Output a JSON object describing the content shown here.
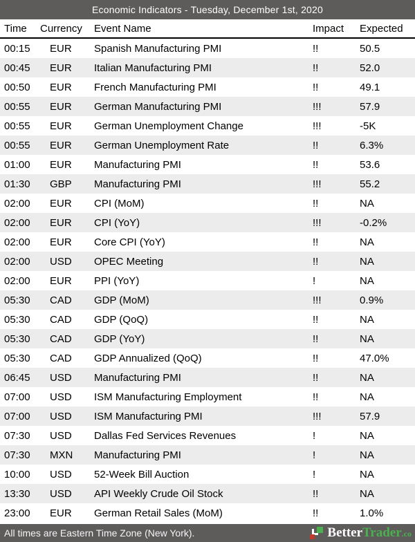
{
  "title_bar": {
    "title": "Economic Indicators - Tuesday, December 1st, 2020"
  },
  "table": {
    "columns": {
      "time": "Time",
      "currency": "Currency",
      "event": "Event Name",
      "impact": "Impact",
      "expected": "Expected"
    },
    "rows": [
      {
        "time": "00:15",
        "currency": "EUR",
        "event": "Spanish Manufacturing PMI",
        "impact": "!!",
        "expected": "50.5"
      },
      {
        "time": "00:45",
        "currency": "EUR",
        "event": "Italian Manufacturing PMI",
        "impact": "!!",
        "expected": "52.0"
      },
      {
        "time": "00:50",
        "currency": "EUR",
        "event": "French Manufacturing PMI",
        "impact": "!!",
        "expected": "49.1"
      },
      {
        "time": "00:55",
        "currency": "EUR",
        "event": "German Manufacturing PMI",
        "impact": "!!!",
        "expected": "57.9"
      },
      {
        "time": "00:55",
        "currency": "EUR",
        "event": "German Unemployment Change",
        "impact": "!!!",
        "expected": "-5K"
      },
      {
        "time": "00:55",
        "currency": "EUR",
        "event": "German Unemployment Rate",
        "impact": "!!",
        "expected": "6.3%"
      },
      {
        "time": "01:00",
        "currency": "EUR",
        "event": "Manufacturing PMI",
        "impact": "!!",
        "expected": "53.6"
      },
      {
        "time": "01:30",
        "currency": "GBP",
        "event": "Manufacturing PMI",
        "impact": "!!!",
        "expected": "55.2"
      },
      {
        "time": "02:00",
        "currency": "EUR",
        "event": "CPI (MoM)",
        "impact": "!!",
        "expected": "NA"
      },
      {
        "time": "02:00",
        "currency": "EUR",
        "event": "CPI (YoY)",
        "impact": "!!!",
        "expected": "-0.2%"
      },
      {
        "time": "02:00",
        "currency": "EUR",
        "event": "Core CPI (YoY)",
        "impact": "!!",
        "expected": "NA"
      },
      {
        "time": "02:00",
        "currency": "USD",
        "event": "OPEC Meeting",
        "impact": "!!",
        "expected": "NA"
      },
      {
        "time": "02:00",
        "currency": "EUR",
        "event": "PPI (YoY)",
        "impact": "!",
        "expected": "NA"
      },
      {
        "time": "05:30",
        "currency": "CAD",
        "event": "GDP (MoM)",
        "impact": "!!!",
        "expected": "0.9%"
      },
      {
        "time": "05:30",
        "currency": "CAD",
        "event": "GDP (QoQ)",
        "impact": "!!",
        "expected": "NA"
      },
      {
        "time": "05:30",
        "currency": "CAD",
        "event": "GDP (YoY)",
        "impact": "!!",
        "expected": "NA"
      },
      {
        "time": "05:30",
        "currency": "CAD",
        "event": "GDP Annualized (QoQ)",
        "impact": "!!",
        "expected": "47.0%"
      },
      {
        "time": "06:45",
        "currency": "USD",
        "event": "Manufacturing PMI",
        "impact": "!!",
        "expected": "NA"
      },
      {
        "time": "07:00",
        "currency": "USD",
        "event": "ISM Manufacturing Employment",
        "impact": "!!",
        "expected": "NA"
      },
      {
        "time": "07:00",
        "currency": "USD",
        "event": "ISM Manufacturing PMI",
        "impact": "!!!",
        "expected": "57.9"
      },
      {
        "time": "07:30",
        "currency": "USD",
        "event": "Dallas Fed Services Revenues",
        "impact": "!",
        "expected": "NA"
      },
      {
        "time": "07:30",
        "currency": "MXN",
        "event": "Manufacturing PMI",
        "impact": "!",
        "expected": "NA"
      },
      {
        "time": "10:00",
        "currency": "USD",
        "event": "52-Week Bill Auction",
        "impact": "!",
        "expected": "NA"
      },
      {
        "time": "13:30",
        "currency": "USD",
        "event": "API Weekly Crude Oil Stock",
        "impact": "!!",
        "expected": "NA"
      },
      {
        "time": "23:00",
        "currency": "EUR",
        "event": "German Retail Sales (MoM)",
        "impact": "!!",
        "expected": "1.0%"
      }
    ]
  },
  "footer": {
    "note": "All times are Eastern Time Zone (New York).",
    "logo": {
      "brand_first": "Better",
      "brand_second": "Trader",
      "brand_suffix": ".co"
    }
  },
  "colors": {
    "bar_background": "#5e5b5b",
    "row_stripe": "#ececec",
    "logo_green": "#4caf50",
    "logo_red": "#c0392b",
    "header_divider": "#000000"
  }
}
